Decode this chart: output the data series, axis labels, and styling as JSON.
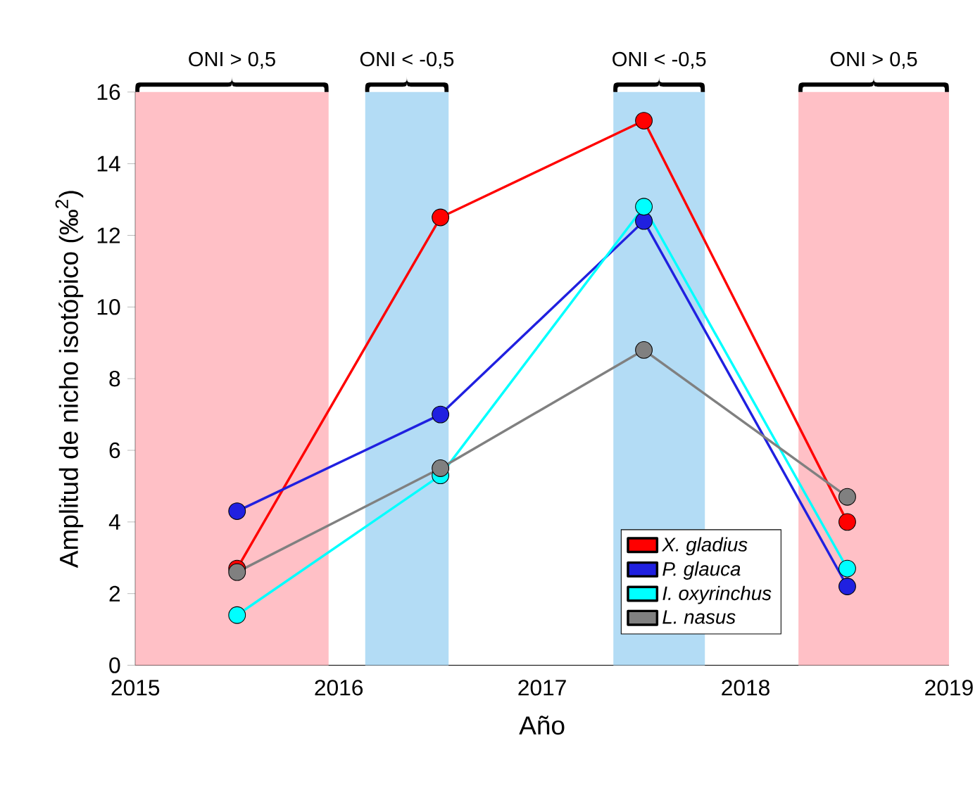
{
  "chart_data": {
    "type": "line",
    "xlabel": "Año",
    "ylabel": "Amplitud de nicho isotópico (‰$^{2}$)",
    "x": [
      2015.5,
      2016.5,
      2017.5,
      2018.5
    ],
    "series": [
      {
        "name": "X. gladius",
        "color": "#ff0000",
        "values": [
          2.7,
          12.5,
          15.2,
          4.0
        ]
      },
      {
        "name": "P. glauca",
        "color": "#2020e0",
        "values": [
          4.3,
          7.0,
          12.4,
          2.2
        ]
      },
      {
        "name": "I. oxyrinchus",
        "color": "#00ffff",
        "values": [
          1.4,
          5.3,
          12.8,
          2.7
        ]
      },
      {
        "name": "L. nasus",
        "color": "#808080",
        "values": [
          2.6,
          5.5,
          8.8,
          4.7
        ]
      }
    ],
    "xlim": [
      2015,
      2019
    ],
    "xticks": [
      2015,
      2016,
      2017,
      2018,
      2019
    ],
    "ylim": [
      0,
      16
    ],
    "yticks": [
      0,
      2,
      4,
      6,
      8,
      10,
      12,
      14,
      16
    ],
    "bands": [
      {
        "axis": "x",
        "from": 2015.0,
        "to": 2015.95,
        "label": "ONI > 0,5",
        "color": "#ffc0c6"
      },
      {
        "axis": "x",
        "from": 2016.13,
        "to": 2016.54,
        "label": "ONI < -0,5",
        "color": "#b3dcf5"
      },
      {
        "axis": "x",
        "from": 2017.35,
        "to": 2017.8,
        "label": "ONI < -0,5",
        "color": "#b3dcf5"
      },
      {
        "axis": "x",
        "from": 2018.26,
        "to": 2019.0,
        "label": "ONI > 0,5",
        "color": "#ffc0c6"
      }
    ],
    "marker": "circle",
    "legend": "bottom right",
    "grid": false
  }
}
